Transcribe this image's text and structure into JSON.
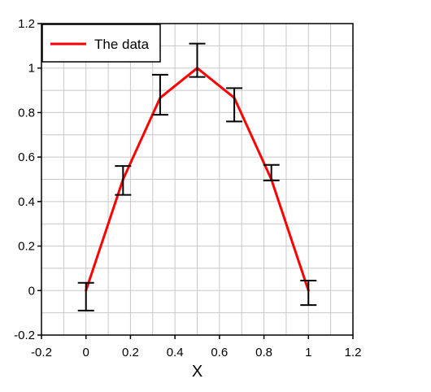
{
  "chart_data": {
    "type": "line",
    "title": "",
    "xlabel": "X",
    "ylabel": "",
    "xlim": [
      -0.2,
      1.2
    ],
    "ylim": [
      -0.2,
      1.2
    ],
    "x_ticks": [
      "-0.2",
      "0",
      "0.2",
      "0.4",
      "0.6",
      "0.8",
      "1",
      "1.2"
    ],
    "y_ticks": [
      "1.2",
      "1",
      "0.8",
      "0.6",
      "0.4",
      "0.2",
      "0",
      "-0.2"
    ],
    "x_minor_step": 0.1,
    "y_minor_step": 0.1,
    "grid": true,
    "legend_position": "top-left",
    "series": [
      {
        "name": "The data",
        "color": "#ff0000",
        "x": [
          0,
          0.1667,
          0.3333,
          0.5,
          0.6667,
          0.8333,
          1
        ],
        "y": [
          0,
          0.5,
          0.866,
          1,
          0.866,
          0.5,
          0
        ],
        "error_bars": {
          "lower": [
            -0.09,
            0.43,
            0.79,
            0.96,
            0.76,
            0.495,
            -0.065
          ],
          "upper": [
            0.035,
            0.56,
            0.97,
            1.11,
            0.91,
            0.565,
            0.045
          ],
          "color": "#000000"
        }
      }
    ]
  }
}
